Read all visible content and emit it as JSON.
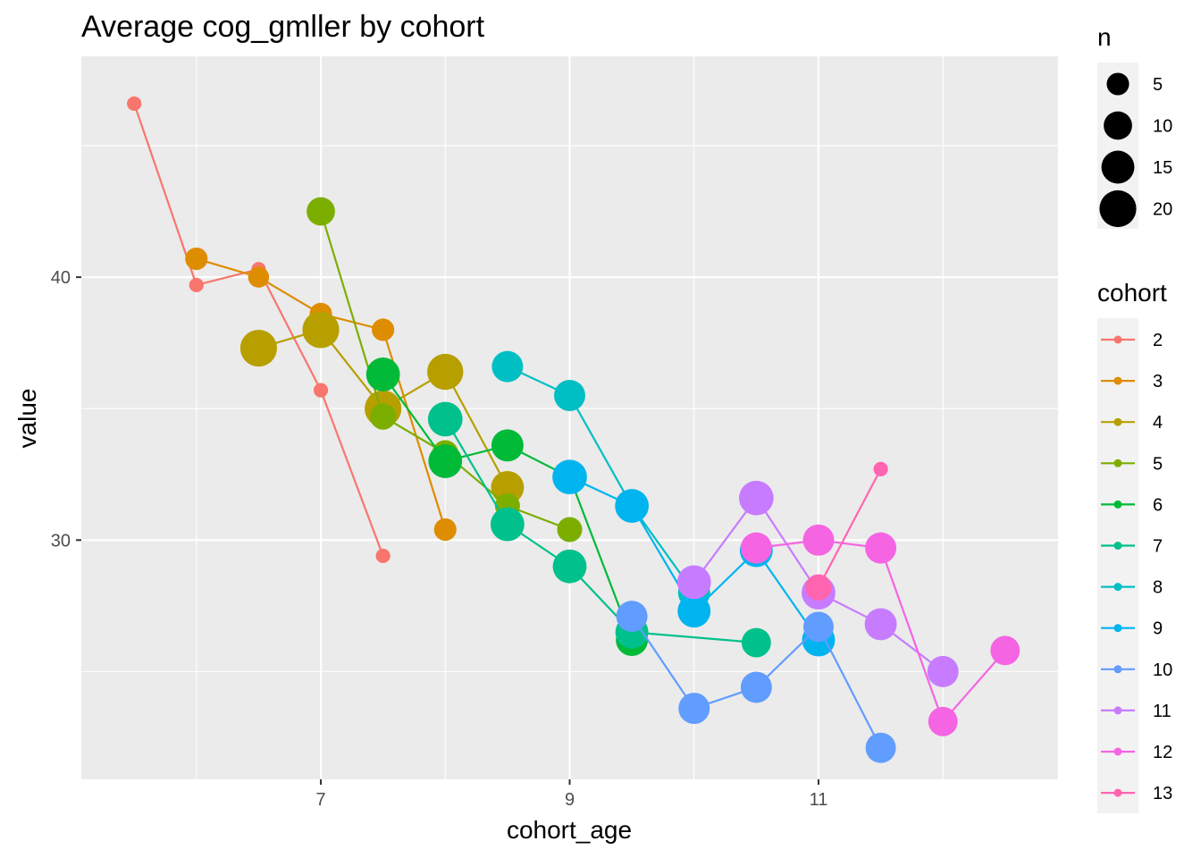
{
  "chart_data": {
    "type": "line",
    "title": "Average cog_gmller by cohort",
    "xlabel": "cohort_age",
    "ylabel": "value",
    "xlim": [
      5.075,
      12.925
    ],
    "ylim": [
      20.9,
      48.4
    ],
    "x_ticks": [
      7,
      9,
      11
    ],
    "x_tick_labels": [
      "7",
      "9",
      "11"
    ],
    "y_ticks": [
      30,
      40
    ],
    "y_tick_labels": [
      "30",
      "40"
    ],
    "grid": true,
    "legend_placement": "right",
    "size_legend": {
      "title": "n",
      "breaks": [
        5,
        10,
        15,
        20
      ],
      "labels": [
        "5",
        "10",
        "15",
        "20"
      ]
    },
    "color_legend_title": "cohort",
    "series": [
      {
        "name": "2",
        "color": "#F8766D",
        "points": [
          {
            "x": 5.5,
            "y": 46.6,
            "n": 1
          },
          {
            "x": 6.0,
            "y": 39.7,
            "n": 1
          },
          {
            "x": 6.5,
            "y": 40.3,
            "n": 1
          },
          {
            "x": 7.0,
            "y": 35.7,
            "n": 1
          },
          {
            "x": 7.5,
            "y": 29.4,
            "n": 1
          }
        ]
      },
      {
        "name": "3",
        "color": "#DE8C00",
        "points": [
          {
            "x": 6.0,
            "y": 40.7,
            "n": 5
          },
          {
            "x": 6.5,
            "y": 40.0,
            "n": 4
          },
          {
            "x": 7.0,
            "y": 38.6,
            "n": 5
          },
          {
            "x": 7.5,
            "y": 38.0,
            "n": 5
          },
          {
            "x": 8.0,
            "y": 30.4,
            "n": 5
          }
        ]
      },
      {
        "name": "4",
        "color": "#B79F00",
        "points": [
          {
            "x": 6.5,
            "y": 37.3,
            "n": 20
          },
          {
            "x": 7.0,
            "y": 38.0,
            "n": 20
          },
          {
            "x": 7.5,
            "y": 35.0,
            "n": 20
          },
          {
            "x": 8.0,
            "y": 36.4,
            "n": 19
          },
          {
            "x": 8.5,
            "y": 32.0,
            "n": 15
          }
        ]
      },
      {
        "name": "5",
        "color": "#7CAE00",
        "points": [
          {
            "x": 7.0,
            "y": 42.5,
            "n": 10
          },
          {
            "x": 7.5,
            "y": 34.7,
            "n": 8
          },
          {
            "x": 8.0,
            "y": 33.3,
            "n": 8
          },
          {
            "x": 8.5,
            "y": 31.3,
            "n": 7
          },
          {
            "x": 9.0,
            "y": 30.4,
            "n": 7
          }
        ]
      },
      {
        "name": "6",
        "color": "#00BA38",
        "points": [
          {
            "x": 7.5,
            "y": 36.3,
            "n": 16
          },
          {
            "x": 8.0,
            "y": 33.0,
            "n": 16
          },
          {
            "x": 8.5,
            "y": 33.6,
            "n": 14
          },
          {
            "x": 9.0,
            "y": 32.4,
            "n": 14
          },
          {
            "x": 9.5,
            "y": 26.2,
            "n": 14
          }
        ]
      },
      {
        "name": "7",
        "color": "#00C08B",
        "points": [
          {
            "x": 8.0,
            "y": 34.6,
            "n": 17
          },
          {
            "x": 8.5,
            "y": 30.6,
            "n": 16
          },
          {
            "x": 9.0,
            "y": 29.0,
            "n": 16
          },
          {
            "x": 9.5,
            "y": 26.5,
            "n": 15
          },
          {
            "x": 10.5,
            "y": 26.1,
            "n": 11
          }
        ]
      },
      {
        "name": "8",
        "color": "#00BFC4",
        "points": [
          {
            "x": 8.5,
            "y": 36.6,
            "n": 13
          },
          {
            "x": 9.0,
            "y": 35.5,
            "n": 13
          },
          {
            "x": 9.5,
            "y": 31.3,
            "n": 15
          },
          {
            "x": 10.0,
            "y": 28.0,
            "n": 14
          }
        ]
      },
      {
        "name": "9",
        "color": "#00B4F0",
        "points": [
          {
            "x": 9.0,
            "y": 32.4,
            "n": 17
          },
          {
            "x": 9.5,
            "y": 31.3,
            "n": 16
          },
          {
            "x": 10.0,
            "y": 27.3,
            "n": 15
          },
          {
            "x": 10.5,
            "y": 29.6,
            "n": 15
          },
          {
            "x": 11.0,
            "y": 26.2,
            "n": 15
          }
        ]
      },
      {
        "name": "10",
        "color": "#619CFF",
        "points": [
          {
            "x": 9.5,
            "y": 27.1,
            "n": 13
          },
          {
            "x": 10.0,
            "y": 23.6,
            "n": 13
          },
          {
            "x": 10.5,
            "y": 24.4,
            "n": 13
          },
          {
            "x": 11.0,
            "y": 26.7,
            "n": 12
          },
          {
            "x": 11.5,
            "y": 22.1,
            "n": 12
          }
        ]
      },
      {
        "name": "11",
        "color": "#C77CFF",
        "points": [
          {
            "x": 10.0,
            "y": 28.4,
            "n": 16
          },
          {
            "x": 10.5,
            "y": 31.6,
            "n": 17
          },
          {
            "x": 11.0,
            "y": 28.0,
            "n": 16
          },
          {
            "x": 11.5,
            "y": 26.8,
            "n": 14
          },
          {
            "x": 12.0,
            "y": 25.0,
            "n": 13
          }
        ]
      },
      {
        "name": "12",
        "color": "#F564E3",
        "points": [
          {
            "x": 10.5,
            "y": 29.7,
            "n": 13
          },
          {
            "x": 11.0,
            "y": 30.0,
            "n": 13
          },
          {
            "x": 11.5,
            "y": 29.7,
            "n": 13
          },
          {
            "x": 12.0,
            "y": 23.1,
            "n": 11
          },
          {
            "x": 12.5,
            "y": 25.8,
            "n": 11
          }
        ]
      },
      {
        "name": "13",
        "color": "#FF64B0",
        "points": [
          {
            "x": 11.0,
            "y": 28.2,
            "n": 8
          },
          {
            "x": 11.5,
            "y": 32.7,
            "n": 1
          }
        ]
      }
    ]
  }
}
